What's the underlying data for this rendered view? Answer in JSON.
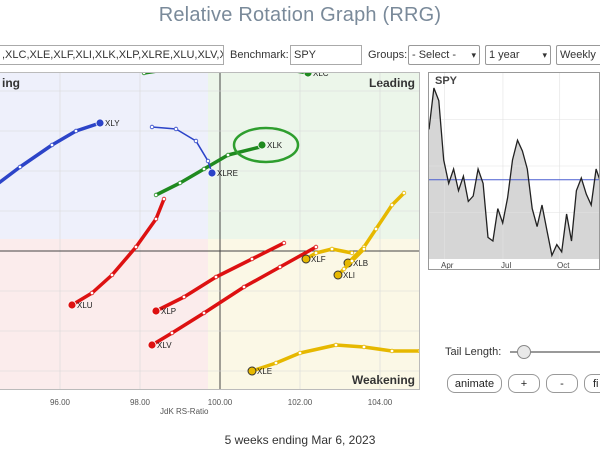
{
  "app": {
    "title": "Relative Rotation Graph (RRG)"
  },
  "toolbar": {
    "symbols_value": ",XLC,XLE,XLF,XLI,XLK,XLP,XLRE,XLU,XLV,XL",
    "benchmark_label": "Benchmark:",
    "benchmark_value": "SPY",
    "groups_label": "Groups:",
    "groups_value": "- Select -",
    "period_value": "1 year",
    "frequency_value": "Weekly"
  },
  "chart": {
    "quadrants": {
      "improving": {
        "label": "ing",
        "color": "#5a6fd0"
      },
      "leading": {
        "label": "Leading",
        "color": "#3aa03a"
      },
      "lagging": {
        "label": "",
        "color": "#d84444"
      },
      "weakening": {
        "label": "Weakening",
        "color": "#e6b800"
      }
    },
    "xlabel": "JdK RS-Ratio",
    "xticks": [
      "96.00",
      "98.00",
      "100.00",
      "102.00",
      "104.00"
    ]
  },
  "chart_data": {
    "type": "scatter",
    "title": "Relative Rotation Graph (RRG)",
    "xlabel": "JdK RS-Ratio",
    "ylabel": "",
    "xlim": [
      94,
      105
    ],
    "ylim": [
      96.5,
      105
    ],
    "grid": true,
    "series": [
      {
        "name": "XLC",
        "color": "#1f8a1f",
        "points": [
          [
            98.1,
            104.45
          ],
          [
            99.1,
            104.6
          ],
          [
            100,
            104.75
          ],
          [
            101,
            104.65
          ],
          [
            102.2,
            104.45
          ]
        ]
      },
      {
        "name": "XLK",
        "color": "#1f8a1f",
        "points": [
          [
            98.4,
            101.4
          ],
          [
            99.0,
            101.7
          ],
          [
            99.6,
            102.05
          ],
          [
            100.2,
            102.4
          ],
          [
            101.0,
            102.6
          ],
          [
            101.05,
            102.65
          ]
        ]
      },
      {
        "name": "XLRE",
        "color": "#2c44c8",
        "points": [
          [
            98.3,
            103.1
          ],
          [
            98.9,
            103.05
          ],
          [
            99.4,
            102.75
          ],
          [
            99.7,
            102.25
          ],
          [
            99.8,
            101.95
          ]
        ]
      },
      {
        "name": "XLY",
        "color": "#2c44c8",
        "points": [
          [
            94.2,
            101.5
          ],
          [
            95.0,
            102.1
          ],
          [
            95.8,
            102.65
          ],
          [
            96.4,
            103.0
          ],
          [
            97.0,
            103.2
          ]
        ]
      },
      {
        "name": "XLU",
        "color": "#dd1111",
        "points": [
          [
            98.6,
            101.3
          ],
          [
            98.4,
            100.8
          ],
          [
            97.9,
            100.1
          ],
          [
            97.3,
            99.4
          ],
          [
            96.8,
            98.95
          ],
          [
            96.3,
            98.65
          ]
        ]
      },
      {
        "name": "XLP",
        "color": "#dd1111",
        "points": [
          [
            101.6,
            100.2
          ],
          [
            100.8,
            99.8
          ],
          [
            99.9,
            99.35
          ],
          [
            99.1,
            98.85
          ],
          [
            98.4,
            98.5
          ]
        ]
      },
      {
        "name": "XLV",
        "color": "#dd1111",
        "points": [
          [
            102.4,
            100.1
          ],
          [
            101.5,
            99.6
          ],
          [
            100.6,
            99.1
          ],
          [
            99.6,
            98.45
          ],
          [
            98.8,
            97.95
          ],
          [
            98.3,
            97.65
          ]
        ]
      },
      {
        "name": "XLF",
        "color": "#e6b800",
        "points": [
          [
            103.3,
            99.95
          ],
          [
            102.8,
            100.05
          ],
          [
            102.4,
            99.95
          ],
          [
            102.15,
            99.8
          ]
        ]
      },
      {
        "name": "XLB",
        "color": "#e6b800",
        "points": [
          [
            104.6,
            101.45
          ],
          [
            104.3,
            101.15
          ],
          [
            103.9,
            100.55
          ],
          [
            103.6,
            100.1
          ],
          [
            103.2,
            99.7
          ]
        ]
      },
      {
        "name": "XLI",
        "color": "#e6b800",
        "points": [
          [
            103.6,
            100.05
          ],
          [
            103.3,
            99.75
          ],
          [
            103.1,
            99.55
          ],
          [
            102.95,
            99.4
          ]
        ]
      },
      {
        "name": "XLE",
        "color": "#e6b800",
        "points": [
          [
            105.0,
            97.5
          ],
          [
            104.3,
            97.5
          ],
          [
            103.6,
            97.6
          ],
          [
            102.9,
            97.65
          ],
          [
            102.0,
            97.45
          ],
          [
            101.4,
            97.2
          ],
          [
            100.8,
            97.0
          ]
        ]
      }
    ],
    "highlight": "XLK"
  },
  "spy_panel": {
    "title": "SPY",
    "months": [
      "Apr",
      "Jul",
      "Oct"
    ],
    "baseline": 0.44,
    "prices": [
      0.72,
      0.95,
      0.88,
      0.55,
      0.42,
      0.5,
      0.38,
      0.46,
      0.32,
      0.35,
      0.5,
      0.42,
      0.12,
      0.1,
      0.28,
      0.2,
      0.34,
      0.55,
      0.66,
      0.6,
      0.5,
      0.28,
      0.18,
      0.3,
      0.16,
      0.02,
      0.08,
      0.04,
      0.25,
      0.1,
      0.38,
      0.45,
      0.36,
      0.3,
      0.5,
      0.42
    ]
  },
  "controls": {
    "tail_length_label": "Tail Length:",
    "tail_length_value": 0.15,
    "animate_label": "animate",
    "plus_label": "+",
    "minus_label": "-",
    "extra_label": "fi"
  },
  "footer": {
    "text": "5 weeks ending Mar 6, 2023"
  }
}
